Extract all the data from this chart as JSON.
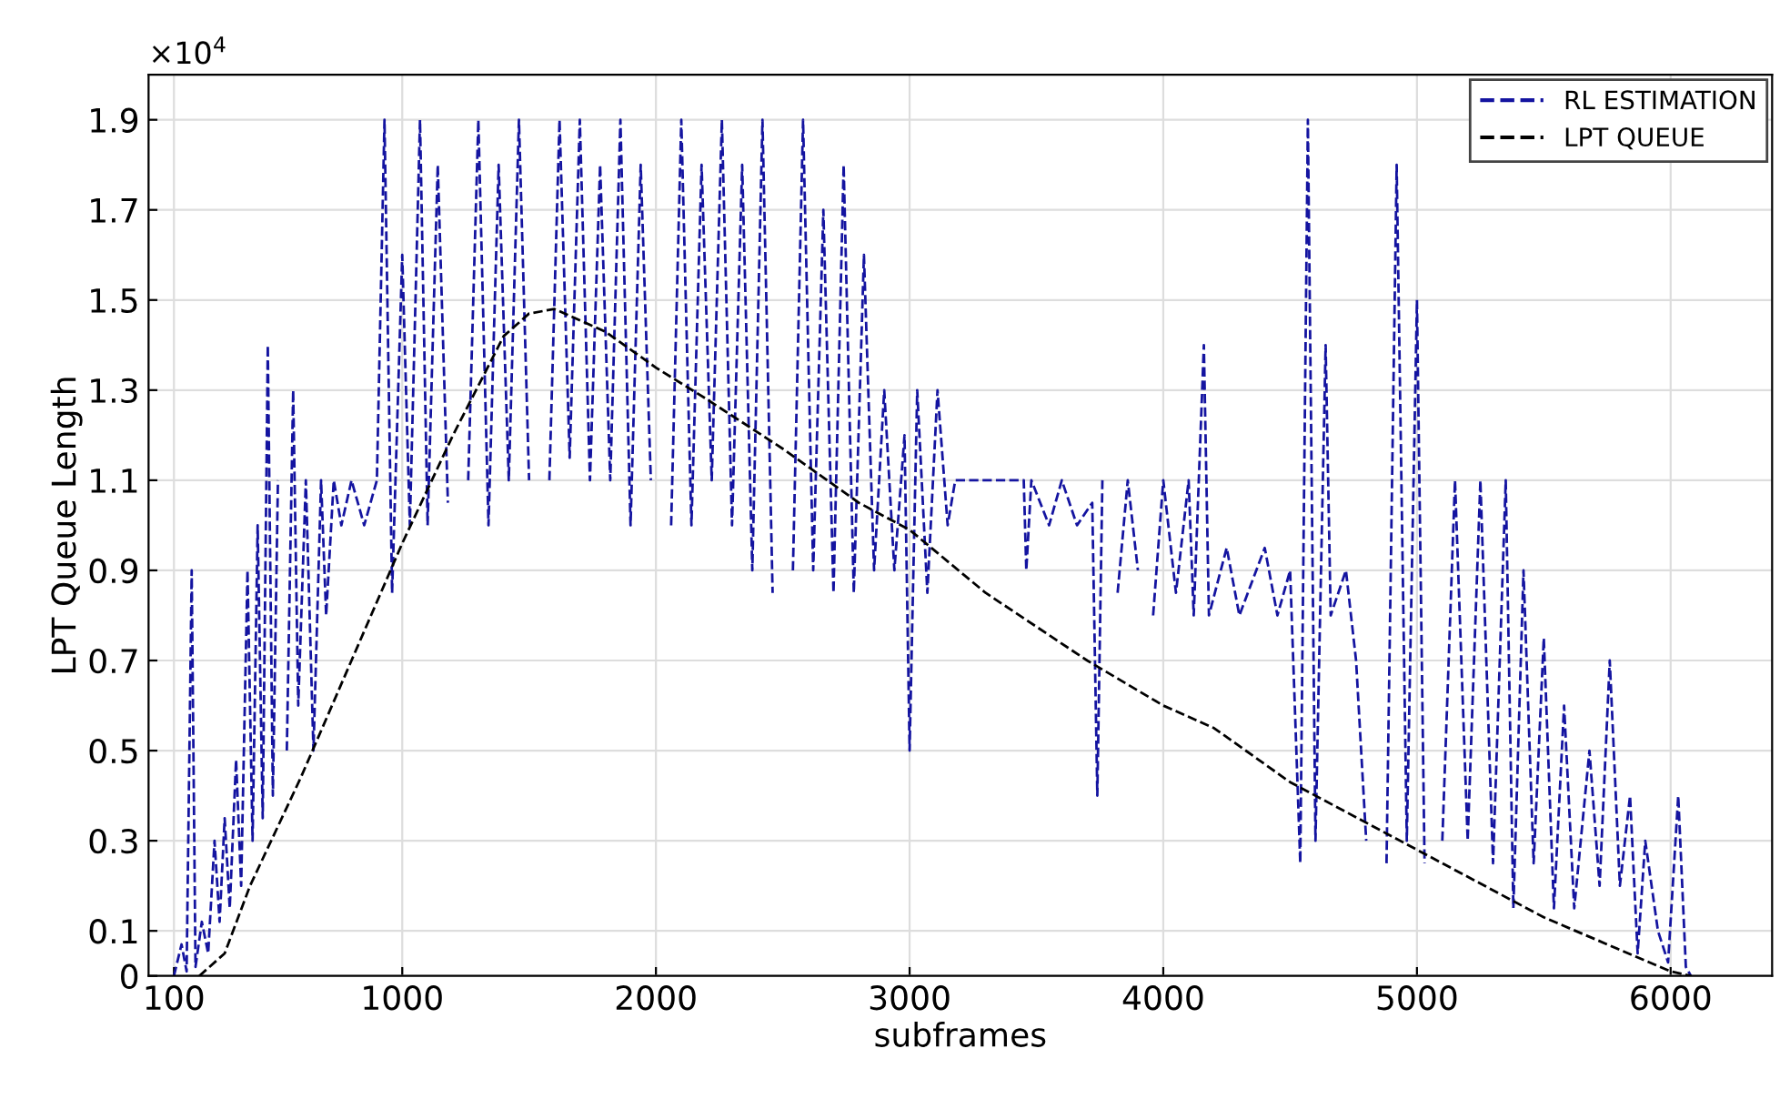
{
  "chart_data": {
    "type": "line",
    "xlabel": "subframes",
    "ylabel": "LPT Queue Length",
    "annotations": [
      "×10$^{4}$"
    ],
    "xlim": [
      0,
      6400
    ],
    "xticks": [
      100,
      1000,
      2000,
      3000,
      4000,
      5000,
      6000
    ],
    "ylim": [
      0,
      2.0
    ],
    "yticks": [
      0,
      0.1,
      0.3,
      0.5,
      0.7,
      0.9,
      1.1,
      1.3,
      1.5,
      1.7,
      1.9
    ],
    "grid": true,
    "legend": "top right",
    "series": [
      {
        "name": "RL ESTIMATION",
        "color": "#1414a0",
        "line_style": "dashed",
        "x": [
          100,
          130,
          150,
          170,
          185,
          210,
          235,
          260,
          280,
          300,
          320,
          345,
          365,
          390,
          410,
          430,
          450,
          470,
          490,
          510,
          530,
          545,
          570,
          590,
          620,
          650,
          680,
          700,
          730,
          760,
          800,
          850,
          900,
          930,
          960,
          1000,
          1030,
          1070,
          1100,
          1140,
          1180,
          1220,
          1260,
          1300,
          1340,
          1380,
          1420,
          1460,
          1500,
          1540,
          1580,
          1620,
          1660,
          1700,
          1740,
          1780,
          1820,
          1860,
          1900,
          1940,
          1980,
          2020,
          2060,
          2100,
          2140,
          2180,
          2220,
          2260,
          2300,
          2340,
          2380,
          2420,
          2460,
          2500,
          2540,
          2580,
          2620,
          2660,
          2700,
          2740,
          2780,
          2820,
          2860,
          2900,
          2940,
          2980,
          3000,
          3030,
          3070,
          3110,
          3150,
          3180,
          3450,
          3460,
          3480,
          3550,
          3600,
          3660,
          3720,
          3740,
          3760,
          3800,
          3820,
          3860,
          3900,
          3940,
          3960,
          4000,
          4050,
          4100,
          4120,
          4160,
          4180,
          4250,
          4300,
          4400,
          4450,
          4500,
          4540,
          4570,
          4600,
          4640,
          4660,
          4720,
          4760,
          4800,
          4850,
          4880,
          4920,
          4960,
          5000,
          5030,
          5060,
          5100,
          5150,
          5200,
          5250,
          5300,
          5350,
          5380,
          5420,
          5460,
          5500,
          5540,
          5580,
          5620,
          5680,
          5720,
          5760,
          5800,
          5840,
          5870,
          5900,
          5950,
          5990,
          6030,
          6060,
          6080
        ],
        "values": [
          0,
          0.07,
          0.01,
          0.9,
          0.02,
          0.12,
          0.05,
          0.3,
          0.12,
          0.35,
          0.15,
          0.48,
          0.2,
          0.9,
          0.3,
          1.0,
          0.35,
          1.4,
          0.4,
          1.1,
          null,
          0.5,
          1.3,
          0.6,
          1.1,
          0.5,
          1.1,
          0.8,
          1.1,
          1.0,
          1.1,
          1.0,
          1.1,
          1.9,
          0.85,
          1.6,
          1.0,
          1.9,
          1.0,
          1.8,
          1.05,
          null,
          1.1,
          1.9,
          1.0,
          1.8,
          1.1,
          1.9,
          1.1,
          null,
          1.1,
          1.9,
          1.15,
          1.9,
          1.1,
          1.8,
          1.1,
          1.9,
          1.0,
          1.8,
          1.1,
          null,
          1.0,
          1.9,
          1.0,
          1.8,
          1.1,
          1.9,
          1.0,
          1.8,
          0.9,
          1.9,
          0.85,
          null,
          0.9,
          1.9,
          0.9,
          1.7,
          0.85,
          1.8,
          0.85,
          1.6,
          0.9,
          1.3,
          0.9,
          1.2,
          0.5,
          1.3,
          0.85,
          1.3,
          1.0,
          1.1,
          1.1,
          0.9,
          1.1,
          1.0,
          1.1,
          1.0,
          1.05,
          0.4,
          1.1,
          null,
          0.85,
          1.1,
          0.9,
          null,
          0.8,
          1.1,
          0.85,
          1.1,
          0.8,
          1.4,
          0.8,
          0.95,
          0.8,
          0.95,
          0.8,
          0.9,
          0.25,
          1.9,
          0.3,
          1.4,
          0.8,
          0.9,
          0.7,
          0.3,
          null,
          0.25,
          1.8,
          0.3,
          1.5,
          0.25,
          null,
          0.3,
          1.1,
          0.3,
          1.1,
          0.25,
          1.1,
          0.15,
          0.9,
          0.25,
          0.75,
          0.15,
          0.6,
          0.15,
          0.5,
          0.2,
          0.7,
          0.2,
          0.4,
          0.05,
          0.3,
          0.1,
          0.03,
          0.4,
          0.02,
          0
        ]
      },
      {
        "name": "LPT QUEUE",
        "color": "#000000",
        "line_style": "dashed",
        "x": [
          200,
          300,
          400,
          600,
          800,
          1000,
          1200,
          1400,
          1500,
          1600,
          1800,
          2000,
          2200,
          2500,
          2800,
          3000,
          3300,
          3700,
          4000,
          4200,
          4500,
          5000,
          5500,
          6000,
          6080
        ],
        "values": [
          0,
          0.05,
          0.2,
          0.44,
          0.7,
          0.96,
          1.2,
          1.42,
          1.47,
          1.48,
          1.43,
          1.35,
          1.28,
          1.17,
          1.05,
          0.99,
          0.85,
          0.7,
          0.6,
          0.55,
          0.43,
          0.28,
          0.13,
          0.01,
          0
        ]
      }
    ]
  }
}
